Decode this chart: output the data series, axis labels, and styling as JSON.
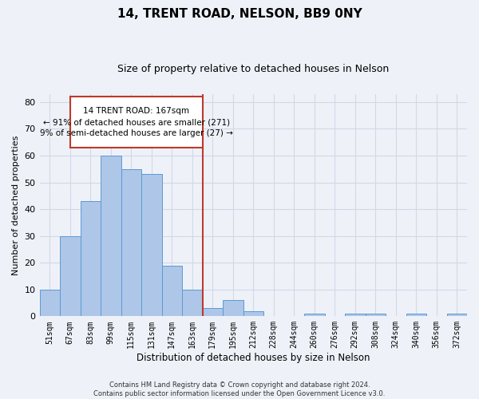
{
  "title1": "14, TRENT ROAD, NELSON, BB9 0NY",
  "title2": "Size of property relative to detached houses in Nelson",
  "xlabel": "Distribution of detached houses by size in Nelson",
  "ylabel": "Number of detached properties",
  "categories": [
    "51sqm",
    "67sqm",
    "83sqm",
    "99sqm",
    "115sqm",
    "131sqm",
    "147sqm",
    "163sqm",
    "179sqm",
    "195sqm",
    "212sqm",
    "228sqm",
    "244sqm",
    "260sqm",
    "276sqm",
    "292sqm",
    "308sqm",
    "324sqm",
    "340sqm",
    "356sqm",
    "372sqm"
  ],
  "values": [
    10,
    30,
    43,
    60,
    55,
    53,
    19,
    10,
    3,
    6,
    2,
    0,
    0,
    1,
    0,
    1,
    1,
    0,
    1,
    0,
    1
  ],
  "bar_color": "#aec6e8",
  "bar_edge_color": "#5b9bd5",
  "vline_x_index": 7,
  "vline_color": "#c0392b",
  "annotation_line1": "14 TRENT ROAD: 167sqm",
  "annotation_line2": "← 91% of detached houses are smaller (271)",
  "annotation_line3": "9% of semi-detached houses are larger (27) →",
  "annotation_box_color": "#c0392b",
  "ylim": [
    0,
    83
  ],
  "yticks": [
    0,
    10,
    20,
    30,
    40,
    50,
    60,
    70,
    80
  ],
  "grid_color": "#d0d8e8",
  "bg_color": "#eef2f8",
  "footer": "Contains HM Land Registry data © Crown copyright and database right 2024.\nContains public sector information licensed under the Open Government Licence v3.0.",
  "title1_fontsize": 11,
  "title2_fontsize": 9,
  "xlabel_fontsize": 8.5,
  "ylabel_fontsize": 8,
  "tick_fontsize": 7,
  "footer_fontsize": 6,
  "ann_fontsize": 7.5
}
